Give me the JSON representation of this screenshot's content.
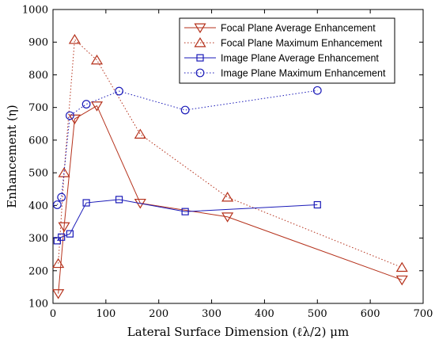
{
  "chart_data": {
    "type": "line",
    "title": "",
    "xlabel": "Lateral Surface Dimension (ℓλ/2) μm",
    "ylabel": "Enhancement (η)",
    "xlim": [
      0,
      700
    ],
    "ylim": [
      100,
      1000
    ],
    "xticks": [
      0,
      100,
      200,
      300,
      400,
      500,
      600,
      700
    ],
    "yticks": [
      100,
      200,
      300,
      400,
      500,
      600,
      700,
      800,
      900,
      1000
    ],
    "grid": false,
    "legend_position": "top-right",
    "series": [
      {
        "name": "Focal Plane Average Enhancement",
        "color": "#b5311b",
        "line_style": "solid",
        "marker": "triangle-down",
        "points": [
          [
            10,
            130
          ],
          [
            21,
            335
          ],
          [
            41,
            665
          ],
          [
            83,
            705
          ],
          [
            165,
            407
          ],
          [
            330,
            365
          ],
          [
            660,
            172
          ]
        ]
      },
      {
        "name": "Focal Plane Maximum Enhancement",
        "color": "#b5311b",
        "line_style": "dotted",
        "marker": "triangle-up",
        "points": [
          [
            10,
            222
          ],
          [
            21,
            500
          ],
          [
            41,
            908
          ],
          [
            83,
            845
          ],
          [
            165,
            618
          ],
          [
            330,
            425
          ],
          [
            660,
            210
          ]
        ]
      },
      {
        "name": "Image Plane Average Enhancement",
        "color": "#1a1ab8",
        "line_style": "solid",
        "marker": "square",
        "points": [
          [
            8,
            292
          ],
          [
            16,
            303
          ],
          [
            32,
            313
          ],
          [
            63,
            408
          ],
          [
            125,
            418
          ],
          [
            250,
            381
          ],
          [
            500,
            402
          ]
        ]
      },
      {
        "name": "Image Plane Maximum Enhancement",
        "color": "#1a1ab8",
        "line_style": "dotted",
        "marker": "circle",
        "points": [
          [
            8,
            402
          ],
          [
            16,
            425
          ],
          [
            32,
            675
          ],
          [
            63,
            710
          ],
          [
            125,
            750
          ],
          [
            250,
            692
          ],
          [
            500,
            752
          ]
        ]
      }
    ]
  }
}
